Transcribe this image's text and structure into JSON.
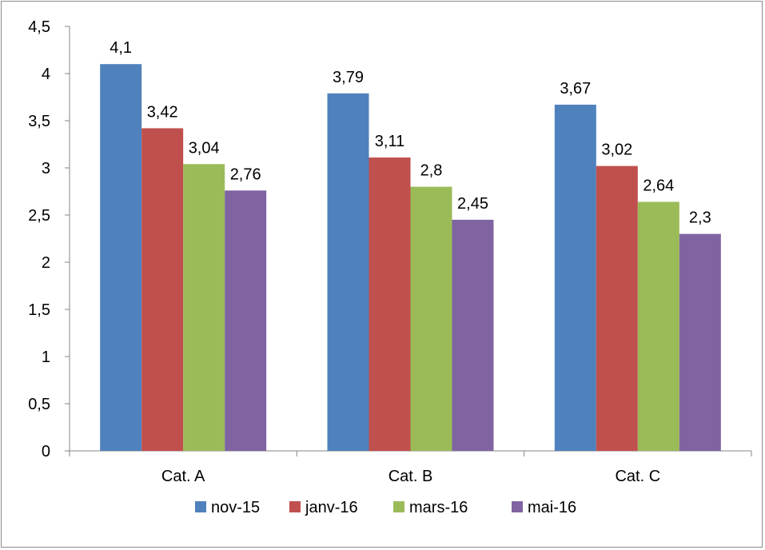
{
  "chart_data": {
    "type": "bar",
    "title": "",
    "xlabel": "",
    "ylabel": "",
    "categories": [
      "Cat. A",
      "Cat. B",
      "Cat. C"
    ],
    "series": [
      {
        "name": "nov-15",
        "color": "#4F81BD",
        "values": [
          4.1,
          3.79,
          3.67
        ],
        "labels": [
          "4,1",
          "3,79",
          "3,67"
        ]
      },
      {
        "name": "janv-16",
        "color": "#C0504D",
        "values": [
          3.42,
          3.11,
          3.02
        ],
        "labels": [
          "3,42",
          "3,11",
          "3,02"
        ]
      },
      {
        "name": "mars-16",
        "color": "#9BBB59",
        "values": [
          3.04,
          2.8,
          2.64
        ],
        "labels": [
          "3,04",
          "2,8",
          "2,64"
        ]
      },
      {
        "name": "mai-16",
        "color": "#8064A2",
        "values": [
          2.76,
          2.45,
          2.3
        ],
        "labels": [
          "2,76",
          "2,45",
          "2,3"
        ]
      }
    ],
    "ylim": [
      0,
      4.5
    ],
    "yticks": [
      0,
      0.5,
      1,
      1.5,
      2,
      2.5,
      3,
      3.5,
      4,
      4.5
    ],
    "ytick_labels": [
      "0",
      "0,5",
      "1",
      "1,5",
      "2",
      "2,5",
      "3",
      "3,5",
      "4",
      "4,5"
    ],
    "grid": false,
    "legend_position": "bottom"
  }
}
